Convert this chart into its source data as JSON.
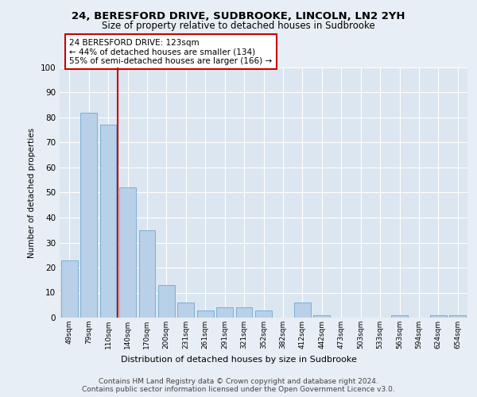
{
  "title1": "24, BERESFORD DRIVE, SUDBROOKE, LINCOLN, LN2 2YH",
  "title2": "Size of property relative to detached houses in Sudbrooke",
  "xlabel": "Distribution of detached houses by size in Sudbrooke",
  "ylabel": "Number of detached properties",
  "categories": [
    "49sqm",
    "79sqm",
    "110sqm",
    "140sqm",
    "170sqm",
    "200sqm",
    "231sqm",
    "261sqm",
    "291sqm",
    "321sqm",
    "352sqm",
    "382sqm",
    "412sqm",
    "442sqm",
    "473sqm",
    "503sqm",
    "533sqm",
    "563sqm",
    "594sqm",
    "624sqm",
    "654sqm"
  ],
  "values": [
    23,
    82,
    77,
    52,
    35,
    13,
    6,
    3,
    4,
    4,
    3,
    0,
    6,
    1,
    0,
    0,
    0,
    1,
    0,
    1,
    1
  ],
  "bar_color": "#b8d0e8",
  "bar_edge_color": "#7aafd4",
  "vline_x": 2.5,
  "vline_color": "#cc0000",
  "annotation_text": "24 BERESFORD DRIVE: 123sqm\n← 44% of detached houses are smaller (134)\n55% of semi-detached houses are larger (166) →",
  "annotation_box_color": "#ffffff",
  "annotation_box_edge_color": "#cc0000",
  "ylim": [
    0,
    100
  ],
  "yticks": [
    0,
    10,
    20,
    30,
    40,
    50,
    60,
    70,
    80,
    90,
    100
  ],
  "bg_color": "#e8eef5",
  "plot_bg_color": "#dce6f0",
  "footer1": "Contains HM Land Registry data © Crown copyright and database right 2024.",
  "footer2": "Contains public sector information licensed under the Open Government Licence v3.0."
}
